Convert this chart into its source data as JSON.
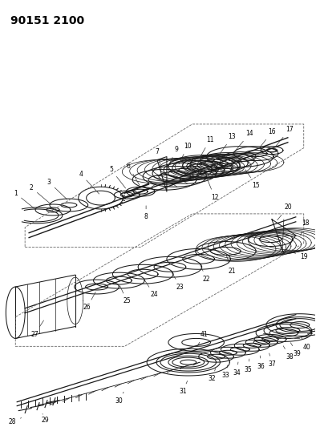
{
  "title": "90151 2100",
  "bg_color": "#ffffff",
  "line_color": "#1a1a1a",
  "fig_width": 3.94,
  "fig_height": 5.33,
  "dpi": 100
}
